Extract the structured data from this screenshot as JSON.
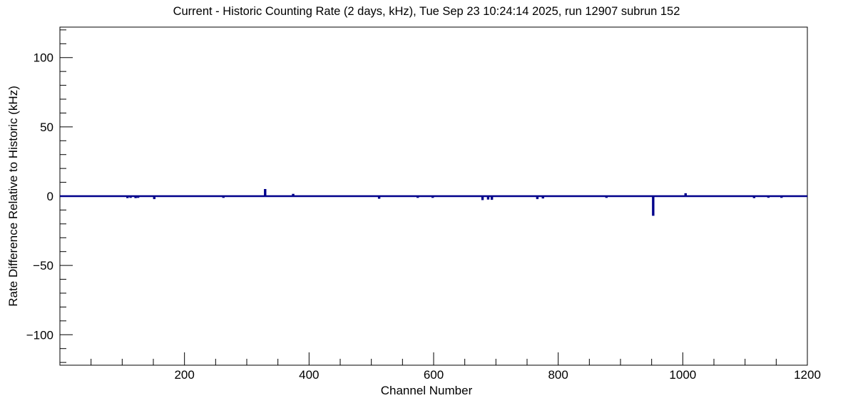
{
  "chart_data": {
    "type": "line",
    "title": "Current - Historic Counting Rate (2 days, kHz), Tue Sep 23 10:24:14 2025, run 12907 subrun 152",
    "xlabel": "Channel Number",
    "ylabel": "Rate Difference Relative to Historic (kHz)",
    "xlim": [
      0,
      1200
    ],
    "ylim": [
      -122,
      122
    ],
    "grid": false,
    "legend_position": "none",
    "frame_color": "#000000",
    "background_color": "#ffffff",
    "line_color": "#00008b",
    "x_ticks": [
      {
        "value": 200,
        "label": "200"
      },
      {
        "value": 400,
        "label": "400"
      },
      {
        "value": 600,
        "label": "600"
      },
      {
        "value": 800,
        "label": "800"
      },
      {
        "value": 1000,
        "label": "1000"
      },
      {
        "value": 1200,
        "label": "1200"
      }
    ],
    "x_minor_tick_step": 50,
    "y_ticks": [
      {
        "value": 100,
        "label": "100"
      },
      {
        "value": 50,
        "label": "50"
      },
      {
        "value": 0,
        "label": "0"
      },
      {
        "value": -50,
        "label": "−50"
      },
      {
        "value": -100,
        "label": "−100"
      }
    ],
    "y_minor_tick_step": 10,
    "n_bins": 1200,
    "baseline_value": 0,
    "spikes": [
      [
        109,
        -0.8
      ],
      [
        114,
        -0.6
      ],
      [
        122,
        -0.8
      ],
      [
        126,
        -0.6
      ],
      [
        152,
        -1.5
      ],
      [
        263,
        -0.6
      ],
      [
        330,
        4.5
      ],
      [
        375,
        1.0
      ],
      [
        513,
        -1.2
      ],
      [
        575,
        -0.6
      ],
      [
        599,
        -0.6
      ],
      [
        679,
        -2.2
      ],
      [
        688,
        -1.8
      ],
      [
        694,
        -2.0
      ],
      [
        767,
        -1.5
      ],
      [
        776,
        -1.0
      ],
      [
        878,
        -0.6
      ],
      [
        953,
        -13.5
      ],
      [
        1005,
        1.5
      ],
      [
        1115,
        -0.8
      ],
      [
        1138,
        -0.5
      ],
      [
        1159,
        -0.6
      ]
    ]
  }
}
